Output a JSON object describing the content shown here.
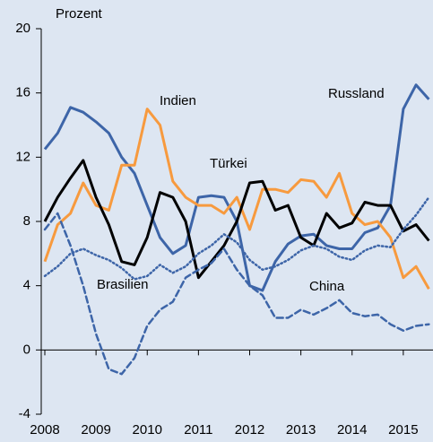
{
  "chart_data": {
    "type": "line",
    "ylabel": "Prozent",
    "x": [
      2008,
      2008.25,
      2008.5,
      2008.75,
      2009,
      2009.25,
      2009.5,
      2009.75,
      2010,
      2010.25,
      2010.5,
      2010.75,
      2011,
      2011.25,
      2011.5,
      2011.75,
      2012,
      2012.25,
      2012.5,
      2012.75,
      2013,
      2013.25,
      2013.5,
      2013.75,
      2014,
      2014.25,
      2014.5,
      2014.75,
      2015,
      2015.25,
      2015.5
    ],
    "xlim": [
      2007.93,
      2015.58
    ],
    "xticks": [
      2008,
      2009,
      2010,
      2011,
      2012,
      2013,
      2014,
      2015
    ],
    "ylim": [
      -4,
      20
    ],
    "yticks": [
      -4,
      0,
      4,
      8,
      12,
      16,
      20
    ],
    "series": [
      {
        "name": "Russland",
        "color": "#3d65a8",
        "style": "solid",
        "values": [
          12.5,
          13.5,
          15.1,
          14.8,
          14.2,
          13.5,
          12,
          11,
          9,
          7,
          6,
          6.5,
          9.5,
          9.6,
          9.5,
          8,
          4,
          3.7,
          5.5,
          6.6,
          7.1,
          7.2,
          6.5,
          6.3,
          6.3,
          7.3,
          7.6,
          9,
          15,
          16.5,
          15.6
        ]
      },
      {
        "name": "Indien",
        "color": "#f79a3e",
        "style": "solid",
        "values": [
          5.5,
          7.8,
          8.5,
          10.4,
          9,
          8.7,
          11.5,
          11.5,
          15,
          14,
          10.5,
          9.5,
          9,
          9,
          8.5,
          9.5,
          7.5,
          10,
          10,
          9.8,
          10.6,
          10.5,
          9.5,
          11,
          8.5,
          7.8,
          8,
          7,
          4.5,
          5.2,
          3.8
        ]
      },
      {
        "name": "Türkei",
        "color": "#000000",
        "style": "solid",
        "values": [
          8,
          9.5,
          10.7,
          11.8,
          9.5,
          7.8,
          5.5,
          5.3,
          7,
          9.8,
          9.5,
          8,
          4.5,
          5.5,
          6.5,
          8,
          10.4,
          10.5,
          8.7,
          9,
          7,
          6.5,
          8.5,
          7.6,
          7.9,
          9.2,
          9,
          9,
          7.4,
          7.8,
          6.8
        ]
      },
      {
        "name": "Brasilien",
        "color": "#3d65a8",
        "style": "dotted",
        "values": [
          4.6,
          5.2,
          6,
          6.3,
          5.9,
          5.6,
          5.1,
          4.4,
          4.6,
          5.3,
          4.8,
          5.2,
          6,
          6.5,
          7.2,
          6.7,
          5.6,
          5,
          5.2,
          5.6,
          6.2,
          6.5,
          6.3,
          5.8,
          5.6,
          6.2,
          6.5,
          6.4,
          7.5,
          8.4,
          9.5
        ]
      },
      {
        "name": "China",
        "color": "#3d65a8",
        "style": "dashed",
        "values": [
          7.5,
          8.5,
          6.5,
          4,
          1,
          -1.2,
          -1.5,
          -0.5,
          1.5,
          2.5,
          3,
          4.5,
          5,
          5.4,
          6.3,
          5,
          4,
          3.4,
          2,
          2,
          2.5,
          2.2,
          2.6,
          3.1,
          2.3,
          2.1,
          2.2,
          1.6,
          1.2,
          1.5,
          1.6
        ]
      }
    ]
  }
}
